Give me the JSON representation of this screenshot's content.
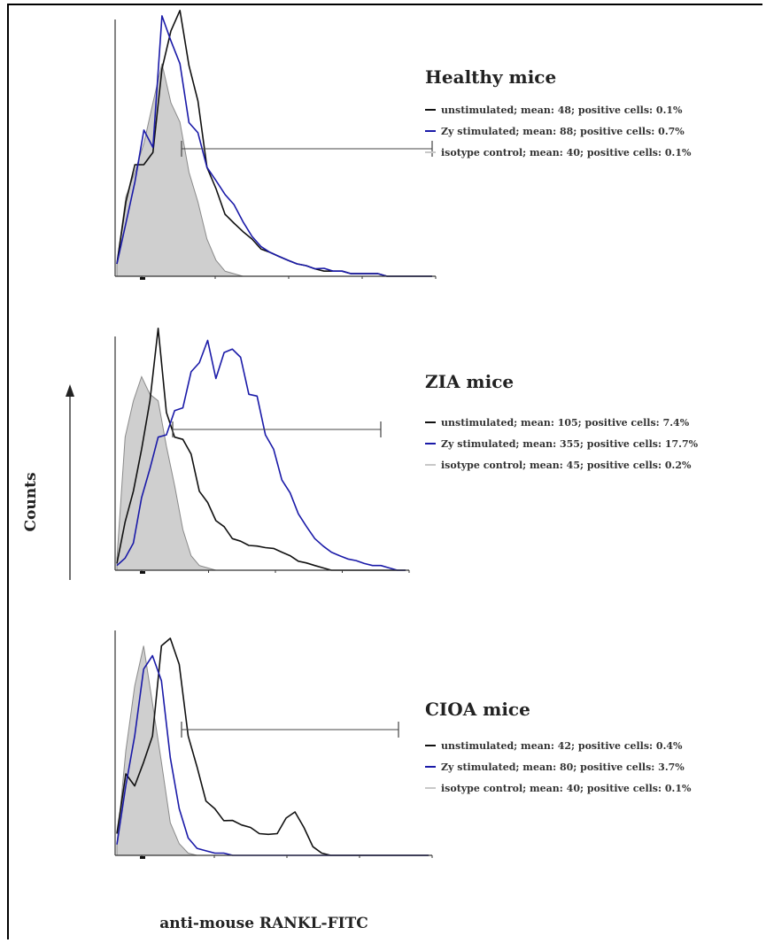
{
  "chart_data": {
    "type": "line",
    "ylabel": "Counts",
    "xlabel": "anti-mouse RANKL-FITC",
    "panels": [
      {
        "title": "Healthy mice",
        "series": [
          {
            "name": "unstimulated; mean: 48; positive cells: 0.1%",
            "color": "#111111",
            "style": "line",
            "values": [
              0.05,
              0.28,
              0.45,
              0.42,
              0.5,
              0.78,
              0.99,
              1.0,
              0.85,
              0.66,
              0.44,
              0.33,
              0.25,
              0.2,
              0.18,
              0.14,
              0.11,
              0.09,
              0.08,
              0.06,
              0.05,
              0.04,
              0.03,
              0.02,
              0.02,
              0.02,
              0.01,
              0.01,
              0.01,
              0.01,
              0.0,
              0.0,
              0.0,
              0.0,
              0.0,
              0.0
            ]
          },
          {
            "name": "Zy stimulated; mean: 88; positive cells: 0.7%",
            "color": "#1a1aa8",
            "style": "line",
            "values": [
              0.05,
              0.2,
              0.38,
              0.55,
              0.52,
              0.98,
              0.95,
              0.8,
              0.62,
              0.54,
              0.44,
              0.36,
              0.33,
              0.27,
              0.22,
              0.15,
              0.12,
              0.09,
              0.08,
              0.06,
              0.05,
              0.04,
              0.03,
              0.03,
              0.02,
              0.02,
              0.01,
              0.01,
              0.01,
              0.01,
              0.0,
              0.0,
              0.0,
              0.0,
              0.0,
              0.0
            ]
          },
          {
            "name": "isotype control; mean: 40; positive cells: 0.1%",
            "color": "#b0b0b0",
            "style": "filled",
            "values": [
              0.05,
              0.3,
              0.42,
              0.5,
              0.7,
              0.8,
              0.7,
              0.58,
              0.42,
              0.28,
              0.15,
              0.06,
              0.02,
              0.01,
              0.0,
              0.0,
              0.0,
              0.0,
              0.0,
              0.0,
              0.0,
              0.0,
              0.0,
              0.0,
              0.0,
              0.0,
              0.0,
              0.0,
              0.0,
              0.0,
              0.0,
              0.0,
              0.0,
              0.0,
              0.0,
              0.0
            ]
          }
        ]
      },
      {
        "title": "ZIA mice",
        "series": [
          {
            "name": "unstimulated; mean: 105; positive cells: 7.4%",
            "color": "#111111",
            "style": "line",
            "values": [
              0.03,
              0.2,
              0.35,
              0.5,
              0.75,
              1.0,
              0.7,
              0.55,
              0.58,
              0.48,
              0.35,
              0.28,
              0.22,
              0.18,
              0.14,
              0.12,
              0.11,
              0.1,
              0.1,
              0.09,
              0.08,
              0.06,
              0.04,
              0.03,
              0.02,
              0.01,
              0.0,
              0.0,
              0.0,
              0.0,
              0.0,
              0.0,
              0.0,
              0.0,
              0.0,
              0.0
            ]
          },
          {
            "name": "Zy stimulated; mean: 355; positive cells: 17.7%",
            "color": "#1a1aa8",
            "style": "line",
            "values": [
              0.02,
              0.05,
              0.12,
              0.3,
              0.45,
              0.55,
              0.6,
              0.66,
              0.72,
              0.82,
              0.92,
              0.95,
              0.85,
              0.9,
              0.98,
              0.88,
              0.78,
              0.72,
              0.6,
              0.5,
              0.4,
              0.32,
              0.25,
              0.18,
              0.14,
              0.1,
              0.08,
              0.06,
              0.05,
              0.04,
              0.03,
              0.02,
              0.02,
              0.01,
              0.0,
              0.0
            ]
          },
          {
            "name": "isotype control; mean: 45; positive cells: 0.2%",
            "color": "#b0b0b0",
            "style": "filled",
            "values": [
              0.05,
              0.55,
              0.75,
              0.8,
              0.78,
              0.7,
              0.55,
              0.35,
              0.18,
              0.06,
              0.02,
              0.01,
              0.0,
              0.0,
              0.0,
              0.0,
              0.0,
              0.0,
              0.0,
              0.0,
              0.0,
              0.0,
              0.0,
              0.0,
              0.0,
              0.0,
              0.0,
              0.0,
              0.0,
              0.0,
              0.0,
              0.0,
              0.0,
              0.0,
              0.0,
              0.0
            ]
          }
        ]
      },
      {
        "title": "CIOA mice",
        "series": [
          {
            "name": "unstimulated; mean: 42; positive cells: 0.4%",
            "color": "#111111",
            "style": "line",
            "values": [
              0.1,
              0.35,
              0.32,
              0.4,
              0.55,
              0.9,
              1.0,
              0.82,
              0.55,
              0.38,
              0.25,
              0.2,
              0.16,
              0.15,
              0.14,
              0.12,
              0.1,
              0.09,
              0.1,
              0.16,
              0.2,
              0.12,
              0.04,
              0.01,
              0.0,
              0.0,
              0.0,
              0.0,
              0.0,
              0.0,
              0.0,
              0.0,
              0.0,
              0.0,
              0.0,
              0.0
            ]
          },
          {
            "name": "Zy stimulated; mean: 80; positive cells: 3.7%",
            "color": "#1a1aa8",
            "style": "line",
            "values": [
              0.05,
              0.3,
              0.55,
              0.8,
              0.92,
              0.75,
              0.45,
              0.2,
              0.08,
              0.03,
              0.02,
              0.01,
              0.01,
              0.0,
              0.0,
              0.0,
              0.0,
              0.0,
              0.0,
              0.0,
              0.0,
              0.0,
              0.0,
              0.0,
              0.0,
              0.0,
              0.0,
              0.0,
              0.0,
              0.0,
              0.0,
              0.0,
              0.0,
              0.0,
              0.0,
              0.0
            ]
          },
          {
            "name": "isotype control; mean: 40; positive cells: 0.1%",
            "color": "#b0b0b0",
            "style": "filled",
            "values": [
              0.05,
              0.45,
              0.78,
              0.9,
              0.7,
              0.4,
              0.15,
              0.05,
              0.01,
              0.0,
              0.0,
              0.0,
              0.0,
              0.0,
              0.0,
              0.0,
              0.0,
              0.0,
              0.0,
              0.0,
              0.0,
              0.0,
              0.0,
              0.0,
              0.0,
              0.0,
              0.0,
              0.0,
              0.0,
              0.0,
              0.0,
              0.0,
              0.0,
              0.0,
              0.0,
              0.0
            ]
          }
        ]
      }
    ]
  }
}
